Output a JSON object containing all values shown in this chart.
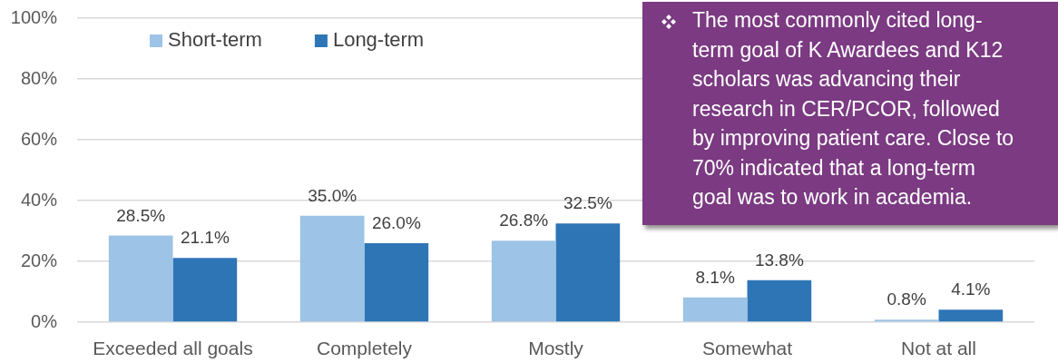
{
  "chart_data": {
    "type": "bar",
    "categories": [
      "Exceeded all goals",
      "Completely",
      "Mostly",
      "Somewhat",
      "Not at all"
    ],
    "series": [
      {
        "name": "Short-term",
        "color": "#9dc3e6",
        "values": [
          28.5,
          35.0,
          26.8,
          8.1,
          0.8
        ],
        "value_labels": [
          "28.5%",
          "35.0%",
          "26.8%",
          "8.1%",
          "0.8%"
        ]
      },
      {
        "name": "Long-term",
        "color": "#2e75b6",
        "values": [
          21.1,
          26.0,
          32.5,
          13.8,
          4.1
        ],
        "value_labels": [
          "21.1%",
          "26.0%",
          "32.5%",
          "13.8%",
          "4.1%"
        ]
      }
    ],
    "ylim": [
      0,
      100
    ],
    "yticks": [
      {
        "value": 0,
        "label": "0%"
      },
      {
        "value": 20,
        "label": "20%"
      },
      {
        "value": 40,
        "label": "40%"
      },
      {
        "value": 60,
        "label": "60%"
      },
      {
        "value": 80,
        "label": "80%"
      },
      {
        "value": 100,
        "label": "100%"
      }
    ],
    "grid": "y",
    "legend": "top left",
    "annotations": [
      "The most commonly cited long-term goal of K Awardees and K12 scholars was advancing their research in CER/PCOR, followed by improving patient care. Close to 70% indicated that a long-term goal was to work in academia."
    ]
  }
}
